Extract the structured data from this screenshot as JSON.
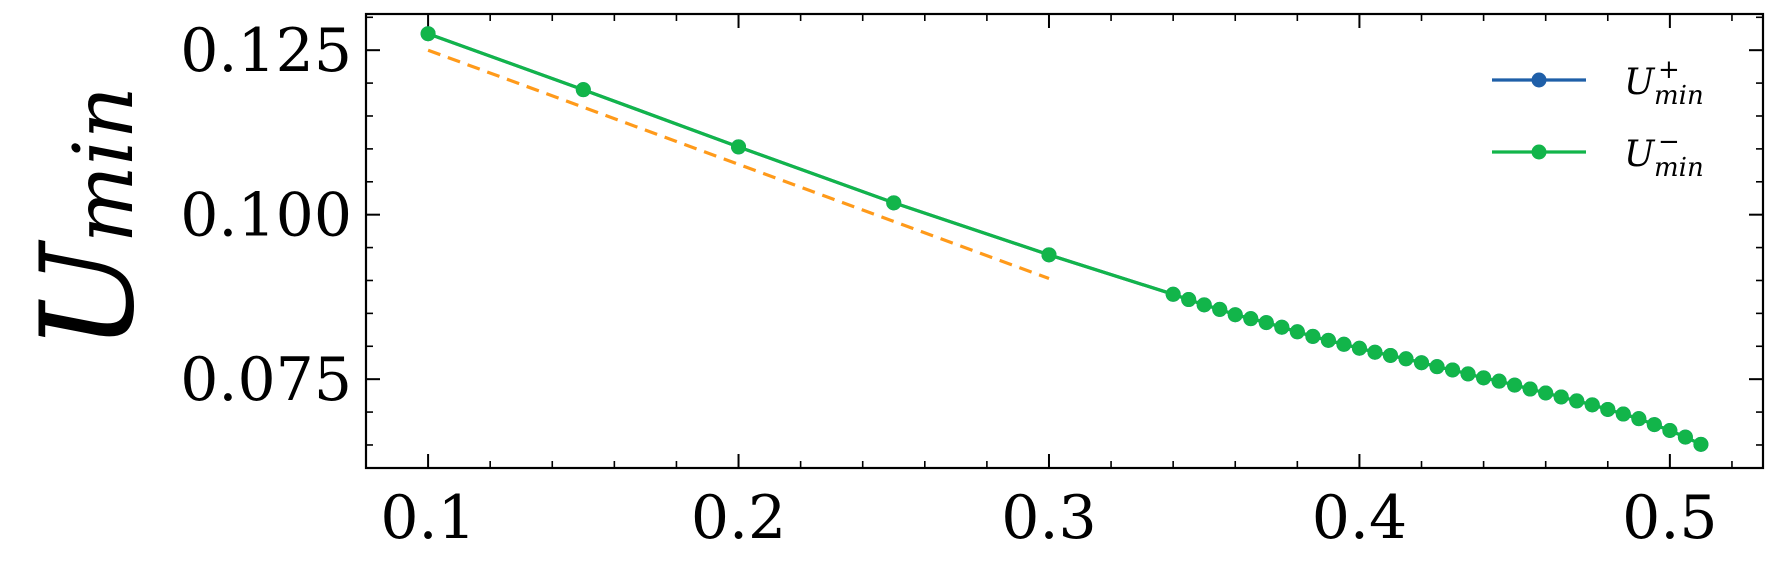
{
  "chart_data": {
    "type": "line",
    "xlabel": "",
    "ylabel": {
      "base": "U",
      "sub": "min"
    },
    "xlim": [
      0.08,
      0.53
    ],
    "ylim": [
      0.0615,
      0.1305
    ],
    "x_ticks": [
      0.1,
      0.2,
      0.3,
      0.4,
      0.5
    ],
    "x_tick_labels": [
      "0.1",
      "0.2",
      "0.3",
      "0.4",
      "0.5"
    ],
    "y_ticks": [
      0.075,
      0.1,
      0.125
    ],
    "y_tick_labels": [
      "0.075",
      "0.100",
      "0.125"
    ],
    "legend_position": "top-right",
    "series": [
      {
        "name": "U_min^+",
        "label": {
          "base": "U",
          "sub": "min",
          "sup": "+"
        },
        "color": "#1f5fa8",
        "style": "solid-marker",
        "x": [
          0.1,
          0.15,
          0.2,
          0.25,
          0.3,
          0.34,
          0.345,
          0.35,
          0.355,
          0.36,
          0.365,
          0.37,
          0.375,
          0.38,
          0.385,
          0.39,
          0.395,
          0.4,
          0.405,
          0.41,
          0.415,
          0.42,
          0.425,
          0.43,
          0.435,
          0.44,
          0.445,
          0.45,
          0.455,
          0.46,
          0.465,
          0.47,
          0.475,
          0.48,
          0.485,
          0.49,
          0.495,
          0.5,
          0.505,
          0.51
        ],
        "y": [
          0.1275,
          0.119,
          0.1103,
          0.1018,
          0.0939,
          0.0879,
          0.0871,
          0.0863,
          0.0856,
          0.0848,
          0.0842,
          0.0836,
          0.0829,
          0.0822,
          0.0815,
          0.0809,
          0.0803,
          0.0797,
          0.0791,
          0.0786,
          0.0781,
          0.0775,
          0.0769,
          0.0764,
          0.0758,
          0.0752,
          0.0747,
          0.0741,
          0.0735,
          0.0729,
          0.0723,
          0.0717,
          0.0711,
          0.0704,
          0.0697,
          0.069,
          0.0681,
          0.0672,
          0.0662,
          0.0651
        ]
      },
      {
        "name": "U_min^-",
        "label": {
          "base": "U",
          "sub": "min",
          "sup": "−"
        },
        "color": "#12b54a",
        "style": "solid-marker",
        "x": [
          0.1,
          0.15,
          0.2,
          0.25,
          0.3,
          0.34,
          0.345,
          0.35,
          0.355,
          0.36,
          0.365,
          0.37,
          0.375,
          0.38,
          0.385,
          0.39,
          0.395,
          0.4,
          0.405,
          0.41,
          0.415,
          0.42,
          0.425,
          0.43,
          0.435,
          0.44,
          0.445,
          0.45,
          0.455,
          0.46,
          0.465,
          0.47,
          0.475,
          0.48,
          0.485,
          0.49,
          0.495,
          0.5,
          0.505,
          0.51
        ],
        "y": [
          0.1275,
          0.119,
          0.1103,
          0.1018,
          0.0939,
          0.0879,
          0.0871,
          0.0863,
          0.0856,
          0.0848,
          0.0842,
          0.0836,
          0.0829,
          0.0822,
          0.0815,
          0.0809,
          0.0803,
          0.0797,
          0.0791,
          0.0786,
          0.0781,
          0.0775,
          0.0769,
          0.0764,
          0.0758,
          0.0752,
          0.0747,
          0.0741,
          0.0735,
          0.0729,
          0.0723,
          0.0717,
          0.0711,
          0.0704,
          0.0697,
          0.069,
          0.0681,
          0.0672,
          0.0662,
          0.0651
        ]
      },
      {
        "style": "dashed",
        "color": "#ff9a1a",
        "x": [
          0.1,
          0.3
        ],
        "y": [
          0.125,
          0.0903
        ]
      }
    ]
  }
}
